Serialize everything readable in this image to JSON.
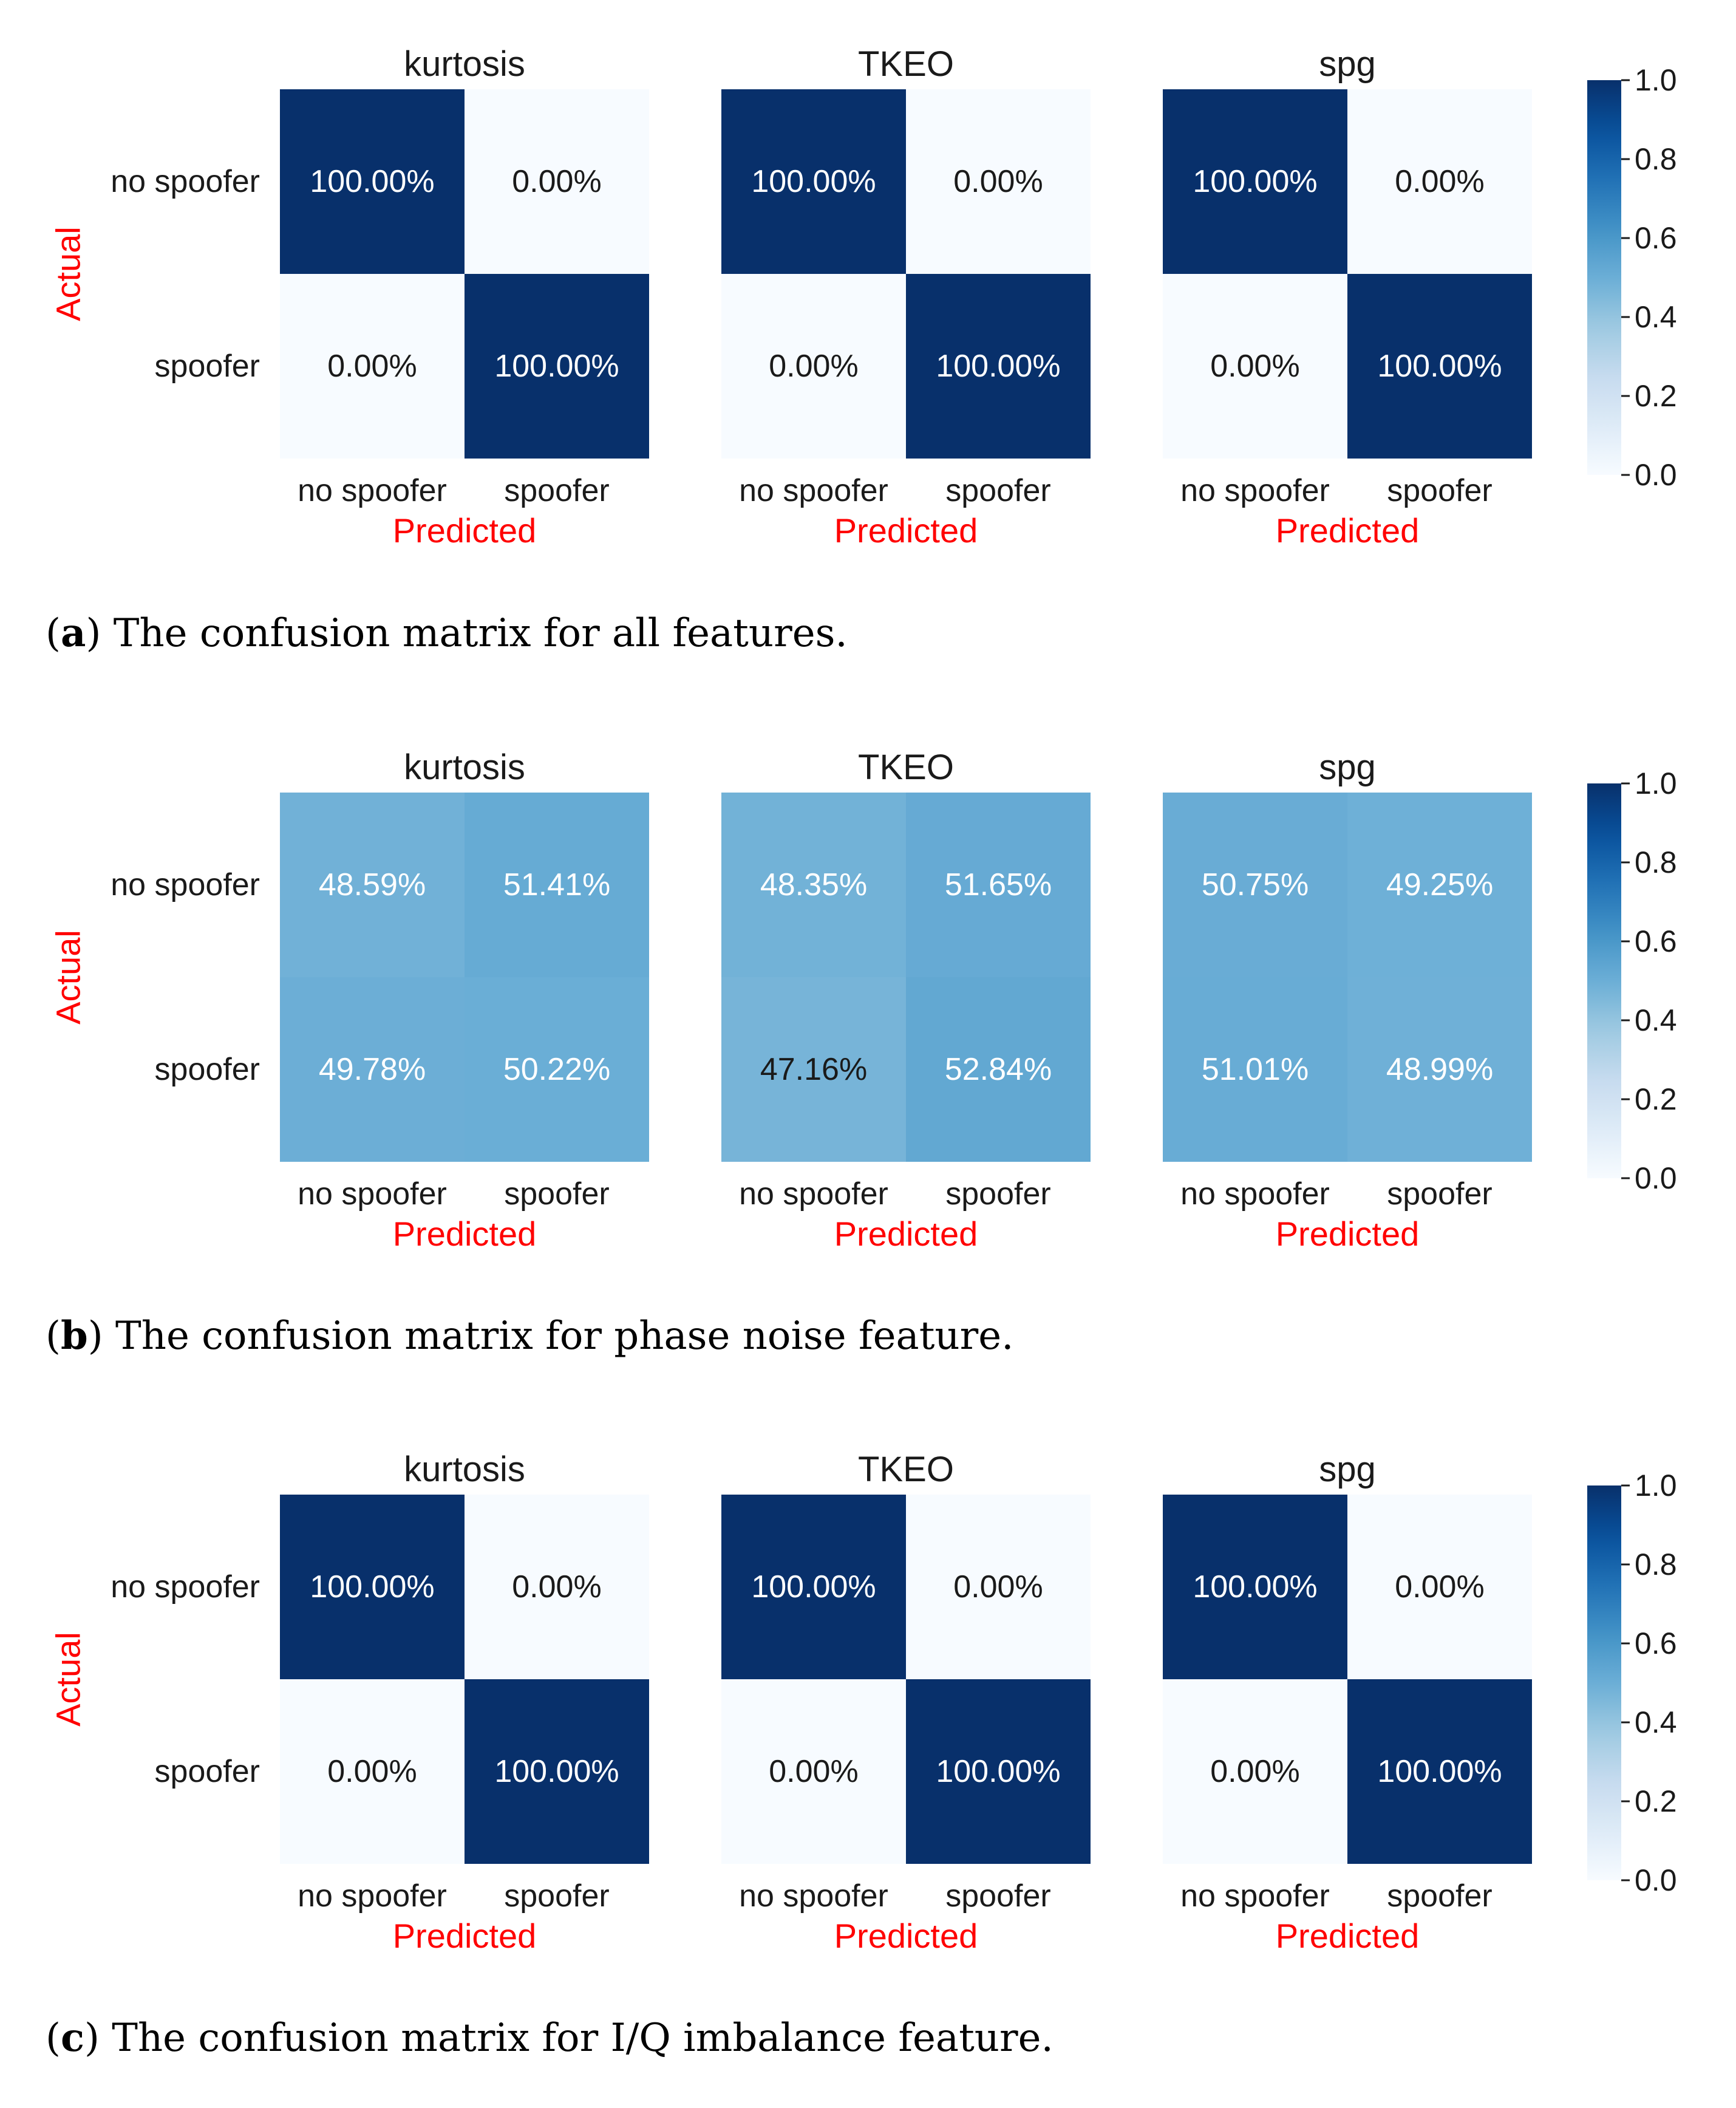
{
  "figure": {
    "captions": [
      {
        "letter": "a",
        "text": " The confusion matrix for all features."
      },
      {
        "letter": "b",
        "text": " The confusion matrix for phase noise feature."
      },
      {
        "letter": "c",
        "text": " The confusion matrix for I/Q imbalance feature."
      }
    ]
  },
  "chart_data": [
    {
      "type": "heatmap",
      "panel": "a",
      "ylabel": "Actual",
      "xlabel": "Predicted",
      "row_labels": [
        "no spoofer",
        "spoofer"
      ],
      "col_labels": [
        "no spoofer",
        "spoofer"
      ],
      "colorbar": {
        "range": [
          0.0,
          1.0
        ],
        "ticks": [
          "0.0",
          "0.2",
          "0.4",
          "0.6",
          "0.8",
          "1.0"
        ]
      },
      "matrices": [
        {
          "title": "kurtosis",
          "values": [
            [
              1.0,
              0.0
            ],
            [
              0.0,
              1.0
            ]
          ],
          "labels": [
            [
              "100.00%",
              "0.00%"
            ],
            [
              "0.00%",
              "100.00%"
            ]
          ]
        },
        {
          "title": "TKEO",
          "values": [
            [
              1.0,
              0.0
            ],
            [
              0.0,
              1.0
            ]
          ],
          "labels": [
            [
              "100.00%",
              "0.00%"
            ],
            [
              "0.00%",
              "100.00%"
            ]
          ]
        },
        {
          "title": "spg",
          "values": [
            [
              1.0,
              0.0
            ],
            [
              0.0,
              1.0
            ]
          ],
          "labels": [
            [
              "100.00%",
              "0.00%"
            ],
            [
              "0.00%",
              "100.00%"
            ]
          ]
        }
      ]
    },
    {
      "type": "heatmap",
      "panel": "b",
      "ylabel": "Actual",
      "xlabel": "Predicted",
      "row_labels": [
        "no spoofer",
        "spoofer"
      ],
      "col_labels": [
        "no spoofer",
        "spoofer"
      ],
      "colorbar": {
        "range": [
          0.0,
          1.0
        ],
        "ticks": [
          "0.0",
          "0.2",
          "0.4",
          "0.6",
          "0.8",
          "1.0"
        ]
      },
      "matrices": [
        {
          "title": "kurtosis",
          "values": [
            [
              0.4859,
              0.5141
            ],
            [
              0.4978,
              0.5022
            ]
          ],
          "labels": [
            [
              "48.59%",
              "51.41%"
            ],
            [
              "49.78%",
              "50.22%"
            ]
          ]
        },
        {
          "title": "TKEO",
          "values": [
            [
              0.4835,
              0.5165
            ],
            [
              0.4716,
              0.5284
            ]
          ],
          "labels": [
            [
              "48.35%",
              "51.65%"
            ],
            [
              "47.16%",
              "52.84%"
            ]
          ]
        },
        {
          "title": "spg",
          "values": [
            [
              0.5075,
              0.4925
            ],
            [
              0.5101,
              0.4899
            ]
          ],
          "labels": [
            [
              "50.75%",
              "49.25%"
            ],
            [
              "51.01%",
              "48.99%"
            ]
          ]
        }
      ]
    },
    {
      "type": "heatmap",
      "panel": "c",
      "ylabel": "Actual",
      "xlabel": "Predicted",
      "row_labels": [
        "no spoofer",
        "spoofer"
      ],
      "col_labels": [
        "no spoofer",
        "spoofer"
      ],
      "colorbar": {
        "range": [
          0.0,
          1.0
        ],
        "ticks": [
          "0.0",
          "0.2",
          "0.4",
          "0.6",
          "0.8",
          "1.0"
        ]
      },
      "matrices": [
        {
          "title": "kurtosis",
          "values": [
            [
              1.0,
              0.0
            ],
            [
              0.0,
              1.0
            ]
          ],
          "labels": [
            [
              "100.00%",
              "0.00%"
            ],
            [
              "0.00%",
              "100.00%"
            ]
          ]
        },
        {
          "title": "TKEO",
          "values": [
            [
              1.0,
              0.0
            ],
            [
              0.0,
              1.0
            ]
          ],
          "labels": [
            [
              "100.00%",
              "0.00%"
            ],
            [
              "0.00%",
              "100.00%"
            ]
          ]
        },
        {
          "title": "spg",
          "values": [
            [
              1.0,
              0.0
            ],
            [
              0.0,
              1.0
            ]
          ],
          "labels": [
            [
              "100.00%",
              "0.00%"
            ],
            [
              "0.00%",
              "100.00%"
            ]
          ]
        }
      ]
    }
  ]
}
